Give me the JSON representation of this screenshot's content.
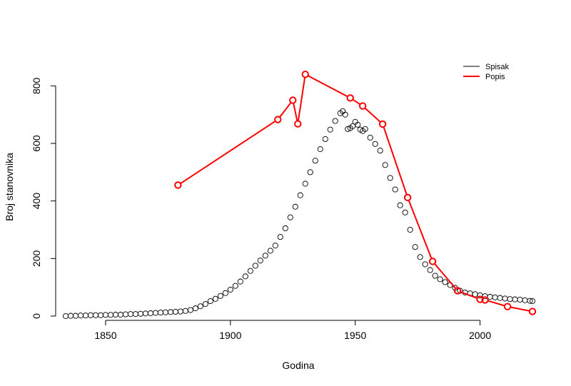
{
  "chart_data": {
    "type": "scatter",
    "title": "",
    "xlabel": "Godina",
    "ylabel": "Broj stanovnika",
    "xlim": [
      1830,
      2025
    ],
    "ylim": [
      0,
      900
    ],
    "x_ticks": [
      1850,
      1900,
      1950,
      2000
    ],
    "y_ticks": [
      0,
      200,
      400,
      600,
      800
    ],
    "grid": false,
    "legend_position": "top-right",
    "legend": [
      {
        "label": "Spisak",
        "color": "#000000"
      },
      {
        "label": "Popis",
        "color": "#ff0000"
      }
    ],
    "series": [
      {
        "name": "Spisak",
        "style": "points",
        "color": "#000000",
        "points": [
          [
            1834,
            0
          ],
          [
            1836,
            1
          ],
          [
            1838,
            1
          ],
          [
            1840,
            2
          ],
          [
            1842,
            2
          ],
          [
            1844,
            3
          ],
          [
            1846,
            3
          ],
          [
            1848,
            3
          ],
          [
            1850,
            4
          ],
          [
            1852,
            4
          ],
          [
            1854,
            5
          ],
          [
            1856,
            5
          ],
          [
            1858,
            6
          ],
          [
            1860,
            7
          ],
          [
            1862,
            7
          ],
          [
            1864,
            8
          ],
          [
            1866,
            9
          ],
          [
            1868,
            10
          ],
          [
            1870,
            11
          ],
          [
            1872,
            12
          ],
          [
            1874,
            13
          ],
          [
            1876,
            14
          ],
          [
            1878,
            15
          ],
          [
            1880,
            16
          ],
          [
            1882,
            18
          ],
          [
            1884,
            21
          ],
          [
            1886,
            27
          ],
          [
            1888,
            34
          ],
          [
            1890,
            42
          ],
          [
            1892,
            52
          ],
          [
            1894,
            60
          ],
          [
            1896,
            70
          ],
          [
            1898,
            80
          ],
          [
            1900,
            92
          ],
          [
            1902,
            105
          ],
          [
            1904,
            120
          ],
          [
            1906,
            138
          ],
          [
            1908,
            157
          ],
          [
            1910,
            175
          ],
          [
            1912,
            193
          ],
          [
            1914,
            210
          ],
          [
            1916,
            227
          ],
          [
            1918,
            245
          ],
          [
            1920,
            275
          ],
          [
            1922,
            305
          ],
          [
            1924,
            343
          ],
          [
            1926,
            380
          ],
          [
            1928,
            420
          ],
          [
            1930,
            460
          ],
          [
            1932,
            500
          ],
          [
            1934,
            540
          ],
          [
            1936,
            580
          ],
          [
            1938,
            615
          ],
          [
            1940,
            648
          ],
          [
            1942,
            678
          ],
          [
            1944,
            705
          ],
          [
            1945,
            712
          ],
          [
            1946,
            700
          ],
          [
            1947,
            650
          ],
          [
            1948,
            653
          ],
          [
            1949,
            660
          ],
          [
            1950,
            675
          ],
          [
            1951,
            665
          ],
          [
            1952,
            648
          ],
          [
            1953,
            643
          ],
          [
            1954,
            650
          ],
          [
            1956,
            620
          ],
          [
            1958,
            598
          ],
          [
            1960,
            575
          ],
          [
            1962,
            525
          ],
          [
            1964,
            480
          ],
          [
            1966,
            440
          ],
          [
            1968,
            385
          ],
          [
            1970,
            360
          ],
          [
            1972,
            300
          ],
          [
            1974,
            240
          ],
          [
            1976,
            205
          ],
          [
            1978,
            180
          ],
          [
            1980,
            160
          ],
          [
            1982,
            140
          ],
          [
            1984,
            128
          ],
          [
            1986,
            118
          ],
          [
            1988,
            108
          ],
          [
            1990,
            98
          ],
          [
            1992,
            88
          ],
          [
            1994,
            82
          ],
          [
            1996,
            79
          ],
          [
            1998,
            76
          ],
          [
            2000,
            72
          ],
          [
            2002,
            69
          ],
          [
            2004,
            67
          ],
          [
            2006,
            65
          ],
          [
            2008,
            63
          ],
          [
            2010,
            61
          ],
          [
            2012,
            59
          ],
          [
            2014,
            58
          ],
          [
            2016,
            57
          ],
          [
            2018,
            55
          ],
          [
            2020,
            53
          ],
          [
            2021,
            52
          ]
        ]
      },
      {
        "name": "Popis",
        "style": "line+points",
        "color": "#ff0000",
        "points": [
          [
            1879,
            455
          ],
          [
            1919,
            683
          ],
          [
            1925,
            750
          ],
          [
            1927,
            668
          ],
          [
            1930,
            840
          ],
          [
            1948,
            758
          ],
          [
            1953,
            730
          ],
          [
            1961,
            667
          ],
          [
            1971,
            412
          ],
          [
            1981,
            190
          ],
          [
            1991,
            88
          ],
          [
            2000,
            58
          ],
          [
            2002,
            56
          ],
          [
            2011,
            33
          ],
          [
            2021,
            16
          ]
        ]
      }
    ]
  }
}
